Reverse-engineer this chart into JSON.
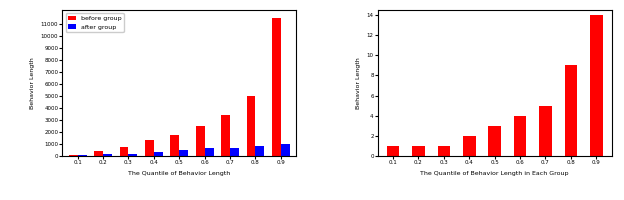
{
  "left": {
    "xlabel": "The Quantile of Behavior Length",
    "ylabel": "Behavior Length",
    "categories": [
      "0.1",
      "0.2",
      "0.3",
      "0.4",
      "0.5",
      "0.6",
      "0.7",
      "0.8",
      "0.9"
    ],
    "before_group": [
      50,
      450,
      750,
      1300,
      1750,
      2500,
      3400,
      5000,
      11500
    ],
    "after_group": [
      50,
      180,
      200,
      350,
      480,
      630,
      670,
      850,
      1000
    ],
    "legend_labels": [
      "before group",
      "after group"
    ],
    "colors": [
      "red",
      "blue"
    ],
    "yticks": [
      0,
      1000,
      2000,
      3000,
      4000,
      5000,
      6000,
      7000,
      8000,
      9000,
      10000,
      11000
    ],
    "ylim": [
      0,
      12200
    ]
  },
  "right": {
    "xlabel": "The Quantile of Behavior Length in Each Group",
    "ylabel": "Behavior Length",
    "categories": [
      "0.1",
      "0.2",
      "0.3",
      "0.4",
      "0.5",
      "0.6",
      "0.7",
      "0.8",
      "0.9"
    ],
    "values": [
      1,
      1,
      1,
      2,
      3,
      4,
      5,
      9,
      14
    ],
    "color": "red",
    "yticks": [
      0,
      2,
      4,
      6,
      8,
      10,
      12,
      14
    ],
    "ylim": [
      0,
      14.5
    ]
  },
  "fig_width": 6.24,
  "fig_height": 2.0,
  "dpi": 100
}
